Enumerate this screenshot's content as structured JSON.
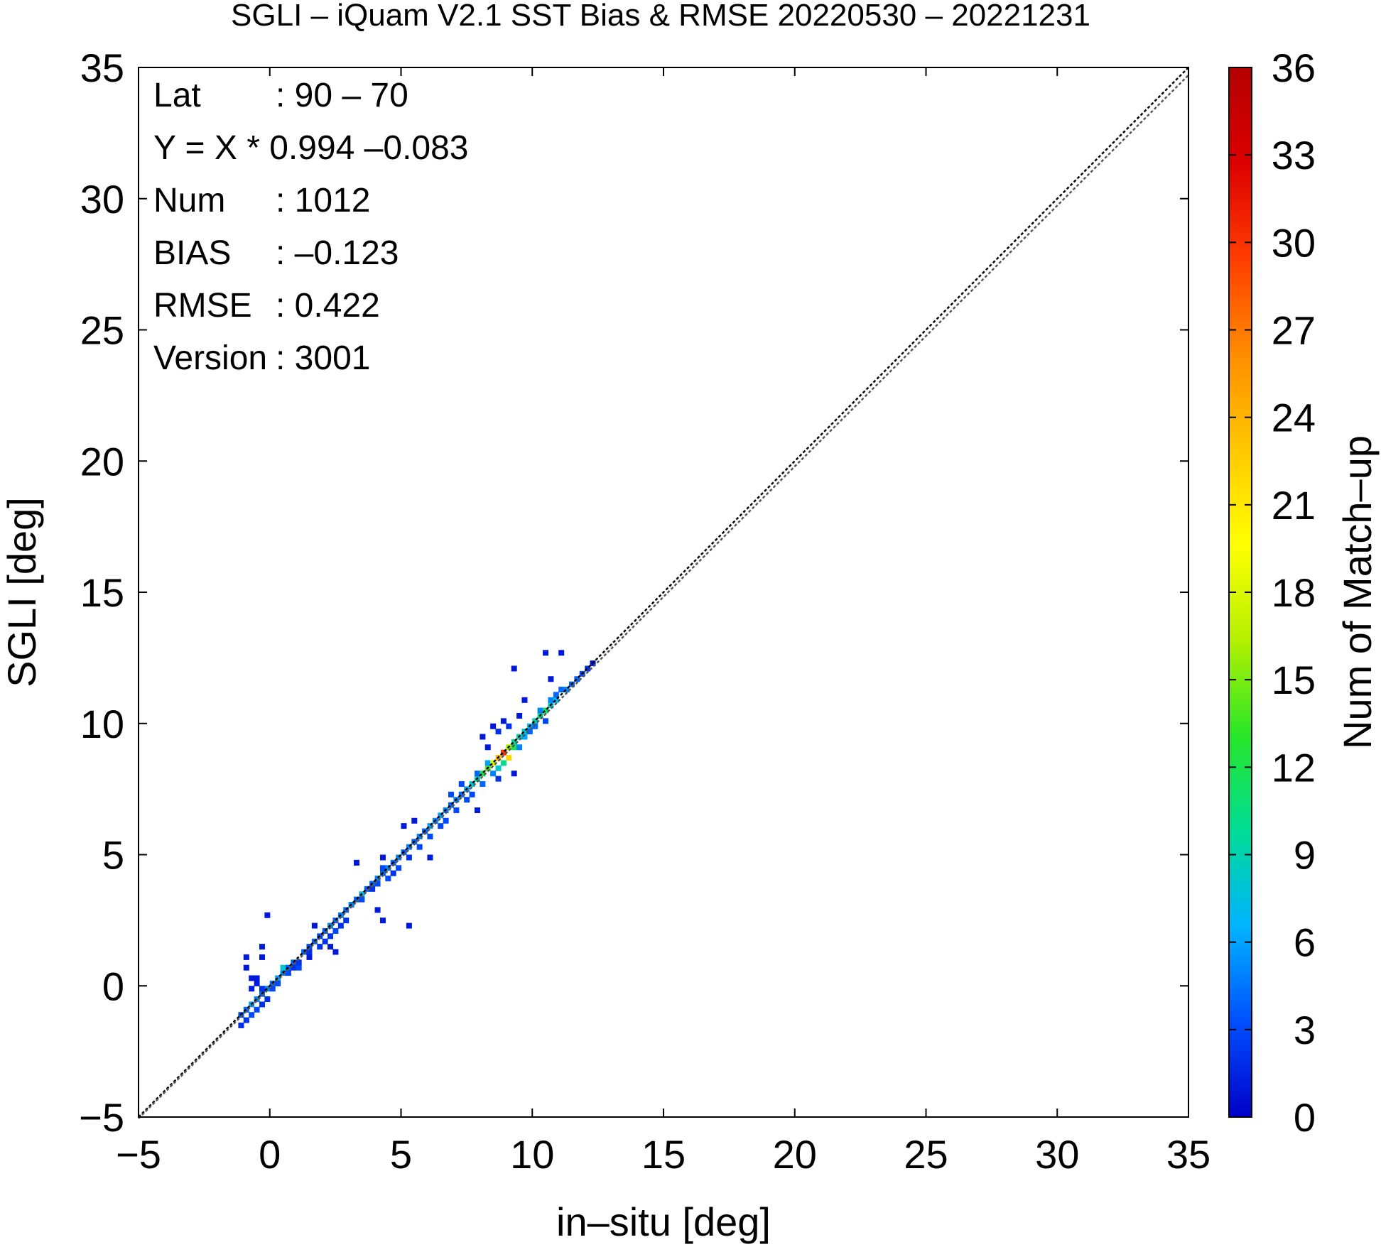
{
  "chart_data": {
    "type": "heatmap",
    "title": "SGLI – iQuam V2.1 SST Bias & RMSE 20220530 – 20221231",
    "xlabel": "in–situ [deg]",
    "ylabel": "SGLI [deg]",
    "xlim": [
      -5,
      35
    ],
    "ylim": [
      -5,
      35
    ],
    "x_ticks": [
      "−5",
      "0",
      "5",
      "10",
      "15",
      "20",
      "25",
      "30",
      "35"
    ],
    "y_ticks": [
      "−5",
      "0",
      "5",
      "10",
      "15",
      "20",
      "25",
      "30",
      "35"
    ],
    "colorbar": {
      "label": "Num of Match–up",
      "range": [
        0,
        36
      ],
      "ticks": [
        "0",
        "3",
        "6",
        "9",
        "12",
        "15",
        "18",
        "21",
        "24",
        "27",
        "30",
        "33",
        "36"
      ],
      "colormap": [
        "#0000c8",
        "#0050ff",
        "#00b4ff",
        "#00dc96",
        "#28e628",
        "#b4f000",
        "#ffff00",
        "#ffc800",
        "#ff8c00",
        "#ff3c00",
        "#dc0000",
        "#b40000"
      ]
    },
    "stats": [
      {
        "label": "Lat",
        "value": ": 90 – 70"
      },
      {
        "label": "Y = X * 0.994 –0.083",
        "value": ""
      },
      {
        "label": "Num",
        "value": ": 1012"
      },
      {
        "label": "BIAS",
        "value": ": –0.123"
      },
      {
        "label": "RMSE",
        "value": ": 0.422"
      },
      {
        "label": "Version",
        "value": ": 3001"
      }
    ],
    "lines": [
      {
        "type": "identity",
        "slope": 1,
        "intercept": 0
      },
      {
        "type": "regression",
        "slope": 0.994,
        "intercept": -0.083
      }
    ],
    "bin_size": 0.2,
    "bins": [
      [
        -1.2,
        -1.6,
        2
      ],
      [
        -1.2,
        -1.2,
        3
      ],
      [
        -1.0,
        -1.4,
        2
      ],
      [
        -1.0,
        -1.0,
        4
      ],
      [
        -0.8,
        -1.2,
        3
      ],
      [
        -0.8,
        -0.8,
        6
      ],
      [
        -0.6,
        -1.0,
        3
      ],
      [
        -0.6,
        -0.6,
        5
      ],
      [
        -0.4,
        -0.4,
        4
      ],
      [
        -0.4,
        -0.8,
        2
      ],
      [
        -0.2,
        -0.2,
        5
      ],
      [
        -0.2,
        -0.6,
        2
      ],
      [
        0.0,
        0.0,
        4
      ],
      [
        0.0,
        -0.2,
        3
      ],
      [
        0.2,
        0.2,
        6
      ],
      [
        0.2,
        0.0,
        3
      ],
      [
        0.4,
        0.4,
        5
      ],
      [
        0.4,
        0.6,
        8
      ],
      [
        0.6,
        0.6,
        4
      ],
      [
        0.6,
        0.4,
        3
      ],
      [
        0.8,
        0.8,
        4
      ],
      [
        0.8,
        0.6,
        2
      ],
      [
        1.0,
        0.6,
        3
      ],
      [
        1.0,
        0.8,
        2
      ],
      [
        -1.0,
        1.0,
        1
      ],
      [
        -1.0,
        0.6,
        1
      ],
      [
        -0.8,
        0.2,
        1
      ],
      [
        -0.8,
        -0.2,
        1
      ],
      [
        -0.6,
        0.0,
        1
      ],
      [
        -0.4,
        1.0,
        1
      ],
      [
        -0.4,
        1.4,
        1
      ],
      [
        -0.2,
        2.6,
        1
      ],
      [
        -0.4,
        -0.2,
        2
      ],
      [
        -0.6,
        0.2,
        1
      ],
      [
        1.2,
        1.2,
        4
      ],
      [
        1.4,
        1.4,
        3
      ],
      [
        1.4,
        1.2,
        2
      ],
      [
        1.6,
        1.6,
        4
      ],
      [
        1.8,
        1.8,
        3
      ],
      [
        1.8,
        1.4,
        2
      ],
      [
        2.0,
        2.0,
        4
      ],
      [
        2.0,
        1.6,
        2
      ],
      [
        2.2,
        2.2,
        5
      ],
      [
        2.2,
        1.8,
        2
      ],
      [
        2.4,
        2.4,
        4
      ],
      [
        2.4,
        2.0,
        3
      ],
      [
        2.6,
        2.6,
        5
      ],
      [
        2.6,
        2.2,
        2
      ],
      [
        2.8,
        2.8,
        4
      ],
      [
        2.8,
        2.4,
        2
      ],
      [
        3.0,
        3.0,
        5
      ],
      [
        3.2,
        3.2,
        4
      ],
      [
        3.4,
        3.4,
        7
      ],
      [
        3.4,
        3.2,
        3
      ],
      [
        3.6,
        3.6,
        4
      ],
      [
        1.6,
        2.2,
        1
      ],
      [
        1.4,
        1.0,
        1
      ],
      [
        2.2,
        1.4,
        1
      ],
      [
        2.4,
        1.2,
        1
      ],
      [
        3.8,
        3.8,
        4
      ],
      [
        3.8,
        3.6,
        2
      ],
      [
        4.0,
        4.0,
        5
      ],
      [
        4.0,
        3.8,
        3
      ],
      [
        4.2,
        4.2,
        4
      ],
      [
        4.2,
        4.4,
        3
      ],
      [
        4.4,
        4.4,
        5
      ],
      [
        4.4,
        4.0,
        3
      ],
      [
        4.6,
        4.6,
        4
      ],
      [
        4.6,
        4.2,
        2
      ],
      [
        4.8,
        4.8,
        5
      ],
      [
        4.8,
        4.4,
        3
      ],
      [
        5.0,
        5.0,
        4
      ],
      [
        5.2,
        5.2,
        5
      ],
      [
        5.2,
        4.8,
        2
      ],
      [
        5.4,
        5.4,
        4
      ],
      [
        5.6,
        5.6,
        5
      ],
      [
        5.6,
        5.2,
        3
      ],
      [
        5.8,
        5.8,
        4
      ],
      [
        6.0,
        6.0,
        6
      ],
      [
        6.0,
        5.6,
        3
      ],
      [
        6.2,
        6.2,
        5
      ],
      [
        6.4,
        6.4,
        6
      ],
      [
        6.4,
        6.0,
        3
      ],
      [
        6.6,
        6.6,
        5
      ],
      [
        6.6,
        6.2,
        3
      ],
      [
        3.2,
        4.6,
        1
      ],
      [
        4.0,
        2.8,
        1
      ],
      [
        4.2,
        2.4,
        1
      ],
      [
        4.2,
        4.8,
        1
      ],
      [
        5.2,
        2.2,
        1
      ],
      [
        6.0,
        4.8,
        1
      ],
      [
        5.0,
        6.0,
        1
      ],
      [
        5.4,
        6.2,
        1
      ],
      [
        6.8,
        6.8,
        4
      ],
      [
        6.8,
        7.2,
        3
      ],
      [
        7.0,
        7.0,
        5
      ],
      [
        7.0,
        6.6,
        3
      ],
      [
        7.2,
        7.2,
        4
      ],
      [
        7.2,
        7.6,
        3
      ],
      [
        7.4,
        7.4,
        6
      ],
      [
        7.4,
        7.0,
        3
      ],
      [
        7.6,
        7.6,
        8
      ],
      [
        7.6,
        7.2,
        3
      ],
      [
        7.8,
        7.8,
        9
      ],
      [
        7.8,
        8.0,
        4
      ],
      [
        8.0,
        8.0,
        12
      ],
      [
        8.0,
        7.6,
        4
      ],
      [
        8.2,
        8.2,
        14
      ],
      [
        8.2,
        8.4,
        6
      ],
      [
        8.4,
        8.4,
        18
      ],
      [
        8.4,
        8.0,
        5
      ],
      [
        8.6,
        8.6,
        24
      ],
      [
        8.6,
        8.2,
        8
      ],
      [
        8.8,
        8.8,
        30
      ],
      [
        8.8,
        8.4,
        10
      ],
      [
        9.0,
        8.6,
        22
      ],
      [
        9.0,
        9.0,
        16
      ],
      [
        9.2,
        9.0,
        12
      ],
      [
        9.2,
        9.2,
        10
      ],
      [
        9.4,
        9.4,
        9
      ],
      [
        9.4,
        9.0,
        5
      ],
      [
        9.6,
        9.4,
        6
      ],
      [
        9.6,
        9.6,
        8
      ],
      [
        9.8,
        9.8,
        7
      ],
      [
        9.8,
        9.6,
        4
      ],
      [
        10.0,
        10.0,
        9
      ],
      [
        10.0,
        9.8,
        4
      ],
      [
        10.2,
        10.2,
        10
      ],
      [
        10.2,
        10.4,
        5
      ],
      [
        10.4,
        10.4,
        11
      ],
      [
        10.4,
        10.0,
        3
      ],
      [
        10.6,
        10.6,
        8
      ],
      [
        10.6,
        10.8,
        5
      ],
      [
        10.8,
        10.8,
        7
      ],
      [
        10.8,
        11.0,
        4
      ],
      [
        8.0,
        9.4,
        1
      ],
      [
        8.2,
        9.0,
        1
      ],
      [
        8.4,
        9.8,
        1
      ],
      [
        8.6,
        9.6,
        2
      ],
      [
        8.8,
        10.0,
        1
      ],
      [
        9.0,
        9.8,
        2
      ],
      [
        9.4,
        10.2,
        1
      ],
      [
        9.6,
        10.8,
        1
      ],
      [
        9.2,
        12.0,
        1
      ],
      [
        10.4,
        12.6,
        1
      ],
      [
        10.6,
        11.6,
        1
      ],
      [
        11.0,
        12.6,
        1
      ],
      [
        9.2,
        8.0,
        1
      ],
      [
        8.6,
        7.8,
        2
      ],
      [
        7.8,
        6.6,
        1
      ],
      [
        11.0,
        11.2,
        4
      ],
      [
        11.2,
        11.2,
        5
      ],
      [
        11.4,
        11.4,
        4
      ],
      [
        11.6,
        11.6,
        4
      ],
      [
        11.8,
        11.8,
        3
      ],
      [
        12.0,
        12.0,
        2
      ],
      [
        12.2,
        12.2,
        1
      ]
    ]
  }
}
